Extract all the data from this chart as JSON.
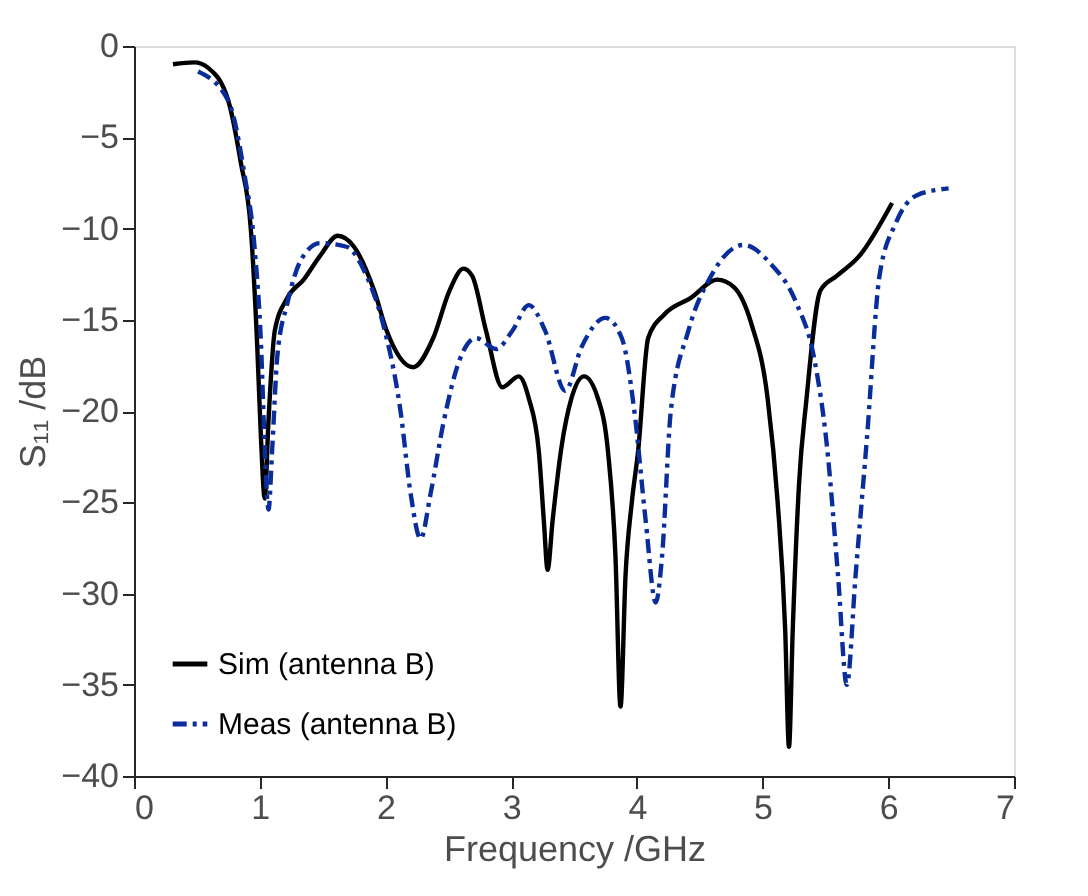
{
  "chart_data": {
    "type": "line",
    "xlabel": "Frequency /GHz",
    "ylabel": "S₁₁ /dB",
    "xlim": [
      0,
      7
    ],
    "xticks": [
      0,
      1,
      2,
      3,
      4,
      5,
      6,
      7
    ],
    "ylim": [
      -40,
      0
    ],
    "yticks": [
      -40,
      -35,
      -30,
      -25,
      -20,
      -15,
      -10,
      -5,
      0
    ],
    "grid": false,
    "legend": "bottom left",
    "series": [
      {
        "name": "Sim (antenna B)",
        "color": "#000000",
        "line_style": "solid",
        "x": [
          0.31,
          0.48,
          0.59,
          0.75,
          0.85,
          0.93,
          0.98,
          1.01,
          1.04,
          1.07,
          1.12,
          1.22,
          1.35,
          1.48,
          1.62,
          1.75,
          1.91,
          2.01,
          2.22,
          2.38,
          2.51,
          2.62,
          2.69,
          2.8,
          2.93,
          3.06,
          3.14,
          3.22,
          3.26,
          3.29,
          3.33,
          3.4,
          3.48,
          3.58,
          3.69,
          3.77,
          3.83,
          3.87,
          3.91,
          3.96,
          4.01,
          4.09,
          4.22,
          4.43,
          4.64,
          4.77,
          4.91,
          5.04,
          5.12,
          5.18,
          5.21,
          5.24,
          5.29,
          5.35,
          5.46,
          5.59,
          5.77,
          6.03
        ],
        "values": [
          -1.0,
          -0.9,
          -1.2,
          -3.0,
          -6.4,
          -10.1,
          -16.4,
          -21.5,
          -24.8,
          -20.5,
          -15.6,
          -13.8,
          -12.8,
          -11.5,
          -10.4,
          -11.0,
          -13.4,
          -15.6,
          -17.6,
          -16.0,
          -13.4,
          -12.2,
          -12.6,
          -15.6,
          -18.7,
          -18.1,
          -19.3,
          -22.2,
          -26.0,
          -28.7,
          -26.0,
          -22.0,
          -19.3,
          -18.1,
          -19.3,
          -22.2,
          -28.0,
          -36.2,
          -29.0,
          -25.0,
          -22.2,
          -16.0,
          -14.7,
          -13.8,
          -12.8,
          -13.2,
          -15.2,
          -19.3,
          -25.0,
          -32.0,
          -38.4,
          -32.0,
          -24.0,
          -19.3,
          -13.4,
          -12.6,
          -11.5,
          -8.6
        ]
      },
      {
        "name": "Meas (antenna B)",
        "color": "#0a2d9c",
        "line_style": "dashed",
        "x": [
          0.51,
          0.75,
          0.88,
          0.96,
          1.01,
          1.04,
          1.07,
          1.1,
          1.14,
          1.22,
          1.33,
          1.48,
          1.69,
          1.85,
          1.98,
          2.12,
          2.2,
          2.28,
          2.36,
          2.46,
          2.59,
          2.72,
          2.88,
          3.01,
          3.14,
          3.27,
          3.43,
          3.56,
          3.75,
          3.88,
          3.98,
          4.07,
          4.15,
          4.2,
          4.27,
          4.41,
          4.59,
          4.85,
          5.06,
          5.27,
          5.41,
          5.51,
          5.6,
          5.67,
          5.74,
          5.83,
          5.93,
          6.06,
          6.22,
          6.48
        ],
        "values": [
          -1.4,
          -3.0,
          -7.1,
          -11.1,
          -16.3,
          -22.0,
          -25.4,
          -22.0,
          -17.0,
          -14.1,
          -11.7,
          -10.8,
          -11.0,
          -12.6,
          -15.2,
          -20.0,
          -24.5,
          -27.0,
          -24.5,
          -20.7,
          -17.2,
          -16.0,
          -16.6,
          -15.6,
          -14.2,
          -15.6,
          -18.9,
          -16.5,
          -14.9,
          -16.0,
          -20.0,
          -26.0,
          -30.5,
          -28.0,
          -20.0,
          -15.6,
          -12.6,
          -10.9,
          -11.9,
          -14.1,
          -17.1,
          -21.8,
          -29.0,
          -35.0,
          -29.0,
          -21.5,
          -12.6,
          -9.7,
          -8.2,
          -7.8
        ]
      }
    ]
  }
}
